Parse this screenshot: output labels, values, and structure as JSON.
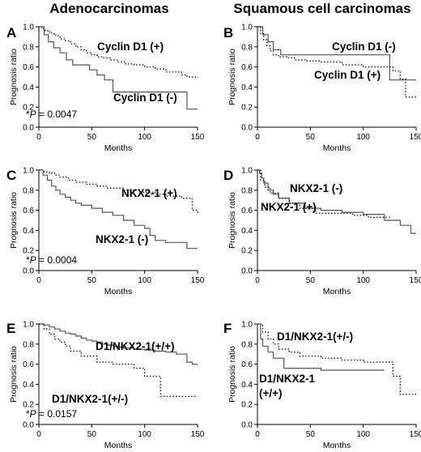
{
  "column_titles": {
    "left": "Adenocarcinomas",
    "right": "Squamous cell carcinomas"
  },
  "chart_data": [
    {
      "panel": "A",
      "type": "line",
      "step": true,
      "xlabel": "Months",
      "ylabel": "Prognosis ratio",
      "xlim": [
        0,
        150
      ],
      "ylim": [
        0,
        1.0
      ],
      "xticks": [
        "0",
        "50",
        "100",
        "150"
      ],
      "yticks": [
        "0.0",
        "0.2",
        "0.4",
        "0.6",
        "0.8",
        "1.0"
      ],
      "pvalue": {
        "prefix": "*",
        "label": "P",
        "text": " = 0.0047"
      },
      "series": [
        {
          "name": "Cyclin D1 (+)",
          "style": "dotted",
          "x": [
            0,
            3,
            6,
            9,
            12,
            16,
            20,
            25,
            30,
            35,
            40,
            45,
            50,
            55,
            60,
            68,
            75,
            82,
            90,
            100,
            110,
            120,
            125,
            135,
            140,
            150
          ],
          "y": [
            1.0,
            0.98,
            0.96,
            0.95,
            0.93,
            0.91,
            0.88,
            0.86,
            0.83,
            0.8,
            0.77,
            0.74,
            0.72,
            0.7,
            0.69,
            0.67,
            0.65,
            0.63,
            0.62,
            0.6,
            0.58,
            0.55,
            0.55,
            0.52,
            0.5,
            0.49
          ]
        },
        {
          "name": "Cyclin D1 (-)",
          "style": "solid",
          "x": [
            0,
            5,
            9,
            14,
            20,
            26,
            32,
            40,
            48,
            55,
            62,
            70,
            120,
            140,
            150
          ],
          "y": [
            1.0,
            0.92,
            0.85,
            0.79,
            0.74,
            0.67,
            0.62,
            0.62,
            0.57,
            0.52,
            0.47,
            0.35,
            0.35,
            0.18,
            0.18
          ]
        }
      ]
    },
    {
      "panel": "B",
      "type": "line",
      "step": true,
      "xlabel": "Months",
      "ylabel": "Prognosis ratio",
      "xlim": [
        0,
        150
      ],
      "ylim": [
        0,
        1.0
      ],
      "xticks": [
        "0",
        "50",
        "100",
        "150"
      ],
      "yticks": [
        "0.0",
        "0.2",
        "0.4",
        "0.6",
        "0.8",
        "1.0"
      ],
      "series": [
        {
          "name": "Cyclin D1 (-)",
          "style": "solid",
          "x": [
            0,
            5,
            10,
            15,
            22,
            60,
            125,
            150
          ],
          "y": [
            1.0,
            0.92,
            0.85,
            0.77,
            0.72,
            0.72,
            0.47,
            0.47
          ]
        },
        {
          "name": "Cyclin D1 (+)",
          "style": "dotted",
          "x": [
            0,
            3,
            6,
            9,
            12,
            15,
            20,
            28,
            35,
            45,
            60,
            80,
            100,
            128,
            135,
            140,
            150
          ],
          "y": [
            1.0,
            0.93,
            0.87,
            0.81,
            0.76,
            0.72,
            0.7,
            0.69,
            0.67,
            0.66,
            0.65,
            0.62,
            0.6,
            0.56,
            0.48,
            0.3,
            0.3
          ]
        }
      ]
    },
    {
      "panel": "C",
      "type": "line",
      "step": true,
      "xlabel": "Months",
      "ylabel": "Prognosis ratio",
      "xlim": [
        0,
        150
      ],
      "ylim": [
        0,
        1.0
      ],
      "xticks": [
        "0",
        "50",
        "100",
        "150"
      ],
      "yticks": [
        "0.0",
        "0.2",
        "0.4",
        "0.6",
        "0.8",
        "1.0"
      ],
      "pvalue": {
        "prefix": "*",
        "label": "P",
        "text": " = 0.0004"
      },
      "series": [
        {
          "name": "NKX2-1 (+)",
          "style": "dotted",
          "x": [
            0,
            5,
            10,
            15,
            20,
            28,
            35,
            45,
            55,
            65,
            80,
            95,
            110,
            120,
            135,
            145,
            150
          ],
          "y": [
            1.0,
            0.98,
            0.97,
            0.95,
            0.93,
            0.9,
            0.88,
            0.86,
            0.84,
            0.82,
            0.8,
            0.78,
            0.76,
            0.74,
            0.72,
            0.6,
            0.57
          ]
        },
        {
          "name": "NKX2-1 (-)",
          "style": "solid",
          "x": [
            0,
            4,
            8,
            12,
            16,
            20,
            25,
            30,
            35,
            40,
            50,
            60,
            70,
            80,
            90,
            100,
            105,
            110,
            120,
            130,
            140,
            150
          ],
          "y": [
            1.0,
            0.95,
            0.9,
            0.84,
            0.8,
            0.76,
            0.73,
            0.7,
            0.67,
            0.65,
            0.62,
            0.58,
            0.55,
            0.5,
            0.45,
            0.42,
            0.35,
            0.3,
            0.28,
            0.28,
            0.22,
            0.22
          ]
        }
      ]
    },
    {
      "panel": "D",
      "type": "line",
      "step": true,
      "xlabel": "Months",
      "ylabel": "Prognosis ratio",
      "xlim": [
        0,
        150
      ],
      "ylim": [
        0,
        1.0
      ],
      "xticks": [
        "0",
        "50",
        "100",
        "150"
      ],
      "yticks": [
        "0.0",
        "0.2",
        "0.4",
        "0.6",
        "0.8",
        "1.0"
      ],
      "series": [
        {
          "name": "NKX2-1 (-)",
          "style": "solid",
          "x": [
            0,
            2,
            4,
            6,
            10,
            15,
            20,
            30,
            45,
            60,
            80,
            100,
            120,
            135,
            145,
            150
          ],
          "y": [
            1.0,
            0.97,
            0.92,
            0.87,
            0.8,
            0.76,
            0.72,
            0.67,
            0.62,
            0.6,
            0.58,
            0.56,
            0.5,
            0.45,
            0.37,
            0.37
          ]
        },
        {
          "name": "NKX2-1 (+)",
          "style": "dotted",
          "x": [
            0,
            3,
            7,
            12,
            20,
            30,
            40,
            55,
            70,
            90,
            105,
            115,
            125
          ],
          "y": [
            1.0,
            0.9,
            0.83,
            0.77,
            0.72,
            0.67,
            0.62,
            0.57,
            0.57,
            0.55,
            0.53,
            0.53,
            0.53
          ]
        }
      ]
    },
    {
      "panel": "E",
      "type": "line",
      "step": true,
      "xlabel": "Months",
      "ylabel": "Prognosis ratio",
      "xlim": [
        0,
        150
      ],
      "ylim": [
        0,
        1.0
      ],
      "xticks": [
        "0",
        "50",
        "100",
        "150"
      ],
      "yticks": [
        "0.0",
        "0.2",
        "0.4",
        "0.6",
        "0.8",
        "1.0"
      ],
      "pvalue": {
        "prefix": "*",
        "label": "P",
        "text": " = 0.0157"
      },
      "series": [
        {
          "name": "D1/NKX2-1(+/+)",
          "style": "solid",
          "x": [
            0,
            5,
            10,
            15,
            20,
            25,
            30,
            35,
            40,
            45,
            50,
            55,
            60,
            65,
            70,
            75,
            80,
            90,
            100,
            110,
            120,
            130,
            140,
            145,
            150
          ],
          "y": [
            1.0,
            0.99,
            0.97,
            0.95,
            0.93,
            0.91,
            0.9,
            0.88,
            0.86,
            0.84,
            0.83,
            0.82,
            0.8,
            0.79,
            0.78,
            0.77,
            0.76,
            0.75,
            0.74,
            0.73,
            0.72,
            0.7,
            0.62,
            0.6,
            0.6
          ]
        },
        {
          "name": "D1/NKX2-1(+/-)",
          "style": "dotted",
          "x": [
            0,
            5,
            10,
            15,
            20,
            25,
            30,
            40,
            50,
            55,
            70,
            90,
            100,
            115,
            120,
            150
          ],
          "y": [
            1.0,
            0.95,
            0.9,
            0.85,
            0.82,
            0.78,
            0.73,
            0.68,
            0.68,
            0.62,
            0.6,
            0.56,
            0.48,
            0.28,
            0.28,
            0.28
          ]
        }
      ]
    },
    {
      "panel": "F",
      "type": "line",
      "step": true,
      "xlabel": "Months",
      "ylabel": "Prognosis ratio",
      "xlim": [
        0,
        150
      ],
      "ylim": [
        0,
        1.0
      ],
      "xticks": [
        "0",
        "50",
        "100",
        "150"
      ],
      "yticks": [
        "0.0",
        "0.2",
        "0.4",
        "0.6",
        "0.8",
        "1.0"
      ],
      "series": [
        {
          "name": "D1/NKX2-1(+/-)",
          "style": "dotted",
          "x": [
            0,
            5,
            10,
            15,
            20,
            30,
            40,
            60,
            80,
            100,
            120,
            128,
            135,
            150
          ],
          "y": [
            1.0,
            0.92,
            0.85,
            0.8,
            0.75,
            0.72,
            0.68,
            0.66,
            0.64,
            0.62,
            0.62,
            0.48,
            0.3,
            0.3
          ]
        },
        {
          "name": "D1/NKX2-1\n(+/+)",
          "style": "solid",
          "x": [
            0,
            3,
            5,
            10,
            15,
            25,
            60,
            120
          ],
          "y": [
            1.0,
            0.85,
            0.78,
            0.72,
            0.66,
            0.56,
            0.54,
            0.54
          ]
        }
      ]
    }
  ]
}
